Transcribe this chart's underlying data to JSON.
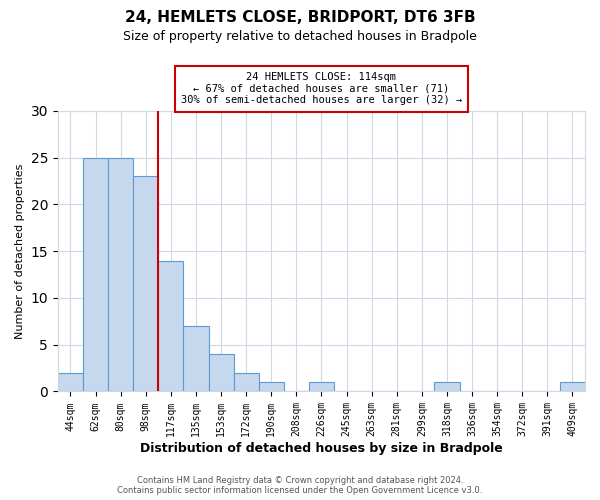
{
  "title": "24, HEMLETS CLOSE, BRIDPORT, DT6 3FB",
  "subtitle": "Size of property relative to detached houses in Bradpole",
  "xlabel": "Distribution of detached houses by size in Bradpole",
  "ylabel": "Number of detached properties",
  "bin_labels": [
    "44sqm",
    "62sqm",
    "80sqm",
    "98sqm",
    "117sqm",
    "135sqm",
    "153sqm",
    "172sqm",
    "190sqm",
    "208sqm",
    "226sqm",
    "245sqm",
    "263sqm",
    "281sqm",
    "299sqm",
    "318sqm",
    "336sqm",
    "354sqm",
    "372sqm",
    "391sqm",
    "409sqm"
  ],
  "bar_heights": [
    2,
    25,
    25,
    23,
    14,
    7,
    4,
    2,
    1,
    0,
    1,
    0,
    0,
    0,
    0,
    1,
    0,
    0,
    0,
    0,
    1
  ],
  "bar_color": "#c5d8ed",
  "bar_edge_color": "#5b9bd5",
  "vline_x_index": 4.0,
  "vline_color": "#cc0000",
  "annotation_title": "24 HEMLETS CLOSE: 114sqm",
  "annotation_line2": "← 67% of detached houses are smaller (71)",
  "annotation_line3": "30% of semi-detached houses are larger (32) →",
  "annotation_box_color": "#cc0000",
  "ylim": [
    0,
    30
  ],
  "yticks": [
    0,
    5,
    10,
    15,
    20,
    25,
    30
  ],
  "footer_line1": "Contains HM Land Registry data © Crown copyright and database right 2024.",
  "footer_line2": "Contains public sector information licensed under the Open Government Licence v3.0.",
  "bg_color": "#ffffff",
  "grid_color": "#cdd8e8"
}
